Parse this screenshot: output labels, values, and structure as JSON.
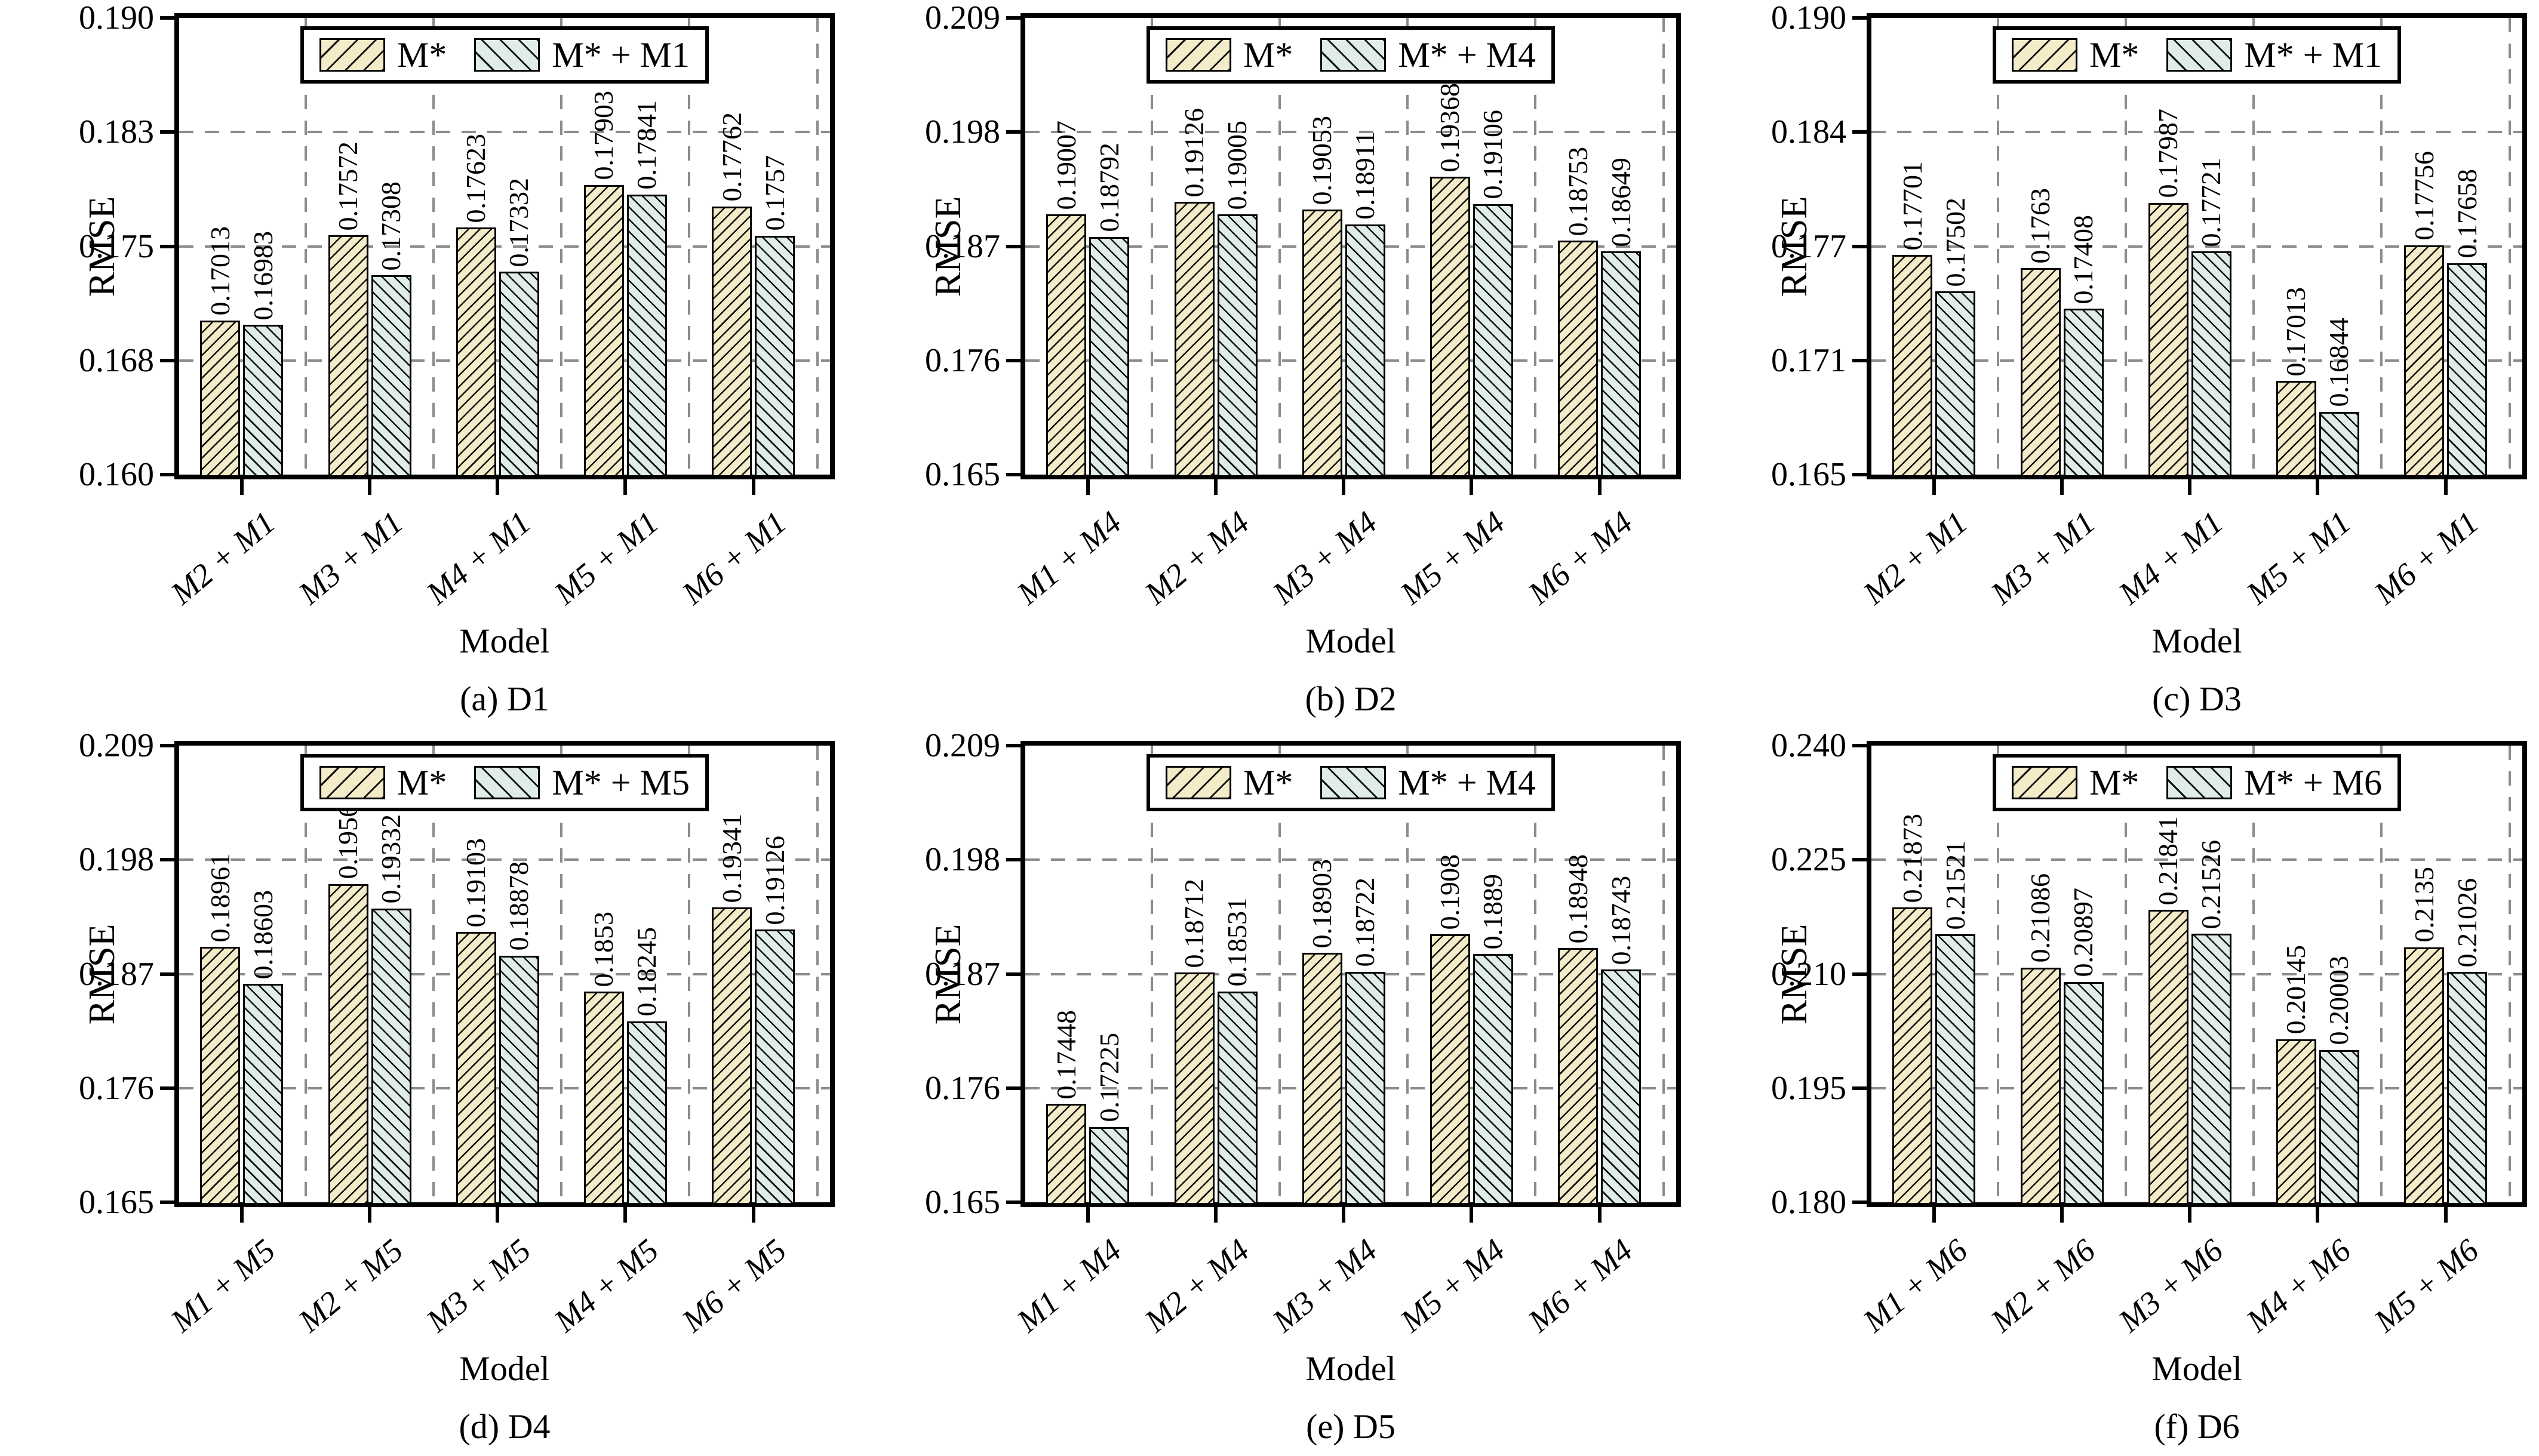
{
  "figure_background": "#ffffff",
  "colors": {
    "series1_fill": "#f4ebc9",
    "series2_fill": "#dfece9",
    "bar_edge": "#000000",
    "grid": "#8c8c8c",
    "axis": "#000000"
  },
  "chart_data": [
    {
      "type": "bar",
      "title": "(a) D1",
      "xlabel": "Model",
      "ylabel": "RMSE",
      "ylim": [
        0.16,
        0.19
      ],
      "ytick_labels": [
        "0.160",
        "0.168",
        "0.175",
        "0.183",
        "0.190"
      ],
      "grid": "dashed",
      "legend_position": "upper center",
      "categories": [
        "M2 + M1",
        "M3 + M1",
        "M4 + M1",
        "M5 + M1",
        "M6 + M1"
      ],
      "series": [
        {
          "name": "M*",
          "values": [
            0.17013,
            0.17572,
            0.17623,
            0.17903,
            0.17762
          ],
          "labels": [
            "0.17013",
            "0.17572",
            "0.17623",
            "0.17903",
            "0.17762"
          ]
        },
        {
          "name": "M* + M1",
          "values": [
            0.16983,
            0.17308,
            0.17332,
            0.17841,
            0.1757
          ],
          "labels": [
            "0.16983",
            "0.17308",
            "0.17332",
            "0.17841",
            "0.1757"
          ]
        }
      ]
    },
    {
      "type": "bar",
      "title": "(b) D2",
      "xlabel": "Model",
      "ylabel": "RMSE",
      "ylim": [
        0.165,
        0.209
      ],
      "ytick_labels": [
        "0.165",
        "0.176",
        "0.187",
        "0.198",
        "0.209"
      ],
      "grid": "dashed",
      "legend_position": "upper center",
      "categories": [
        "M1 + M4",
        "M2 + M4",
        "M3 + M4",
        "M5 + M4",
        "M6 + M4"
      ],
      "series": [
        {
          "name": "M*",
          "values": [
            0.19007,
            0.19126,
            0.19053,
            0.19368,
            0.18753
          ],
          "labels": [
            "0.19007",
            "0.19126",
            "0.19053",
            "0.19368",
            "0.18753"
          ]
        },
        {
          "name": "M* + M4",
          "values": [
            0.18792,
            0.19005,
            0.18911,
            0.19106,
            0.18649
          ],
          "labels": [
            "0.18792",
            "0.19005",
            "0.18911",
            "0.19106",
            "0.18649"
          ]
        }
      ]
    },
    {
      "type": "bar",
      "title": "(c) D3",
      "xlabel": "Model",
      "ylabel": "RMSE",
      "ylim": [
        0.165,
        0.19
      ],
      "ytick_labels": [
        "0.165",
        "0.171",
        "0.177",
        "0.184",
        "0.190"
      ],
      "grid": "dashed",
      "legend_position": "upper center",
      "categories": [
        "M2 + M1",
        "M3 + M1",
        "M4 + M1",
        "M5 + M1",
        "M6 + M1"
      ],
      "series": [
        {
          "name": "M*",
          "values": [
            0.17701,
            0.1763,
            0.17987,
            0.17013,
            0.17756
          ],
          "labels": [
            "0.17701",
            "0.1763",
            "0.17987",
            "0.17013",
            "0.17756"
          ]
        },
        {
          "name": "M* + M1",
          "values": [
            0.17502,
            0.17408,
            0.17721,
            0.16844,
            0.17658
          ],
          "labels": [
            "0.17502",
            "0.17408",
            "0.17721",
            "0.16844",
            "0.17658"
          ]
        }
      ]
    },
    {
      "type": "bar",
      "title": "(d) D4",
      "xlabel": "Model",
      "ylabel": "RMSE",
      "ylim": [
        0.165,
        0.209
      ],
      "ytick_labels": [
        "0.165",
        "0.176",
        "0.187",
        "0.198",
        "0.209"
      ],
      "grid": "dashed",
      "legend_position": "upper center",
      "categories": [
        "M1 + M5",
        "M2 + M5",
        "M3 + M5",
        "M4 + M5",
        "M6 + M5"
      ],
      "series": [
        {
          "name": "M*",
          "values": [
            0.18961,
            0.19568,
            0.19103,
            0.1853,
            0.19341
          ],
          "labels": [
            "0.18961",
            "0.19568",
            "0.19103",
            "0.1853",
            "0.19341"
          ]
        },
        {
          "name": "M* + M5",
          "values": [
            0.18603,
            0.19332,
            0.18878,
            0.18245,
            0.19126
          ],
          "labels": [
            "0.18603",
            "0.19332",
            "0.18878",
            "0.18245",
            "0.19126"
          ]
        }
      ]
    },
    {
      "type": "bar",
      "title": "(e) D5",
      "xlabel": "Model",
      "ylabel": "RMSE",
      "ylim": [
        0.165,
        0.209
      ],
      "ytick_labels": [
        "0.165",
        "0.176",
        "0.187",
        "0.198",
        "0.209"
      ],
      "grid": "dashed",
      "legend_position": "upper center",
      "categories": [
        "M1 + M4",
        "M2 + M4",
        "M3 + M4",
        "M5 + M4",
        "M6 + M4"
      ],
      "series": [
        {
          "name": "M*",
          "values": [
            0.17448,
            0.18712,
            0.18903,
            0.1908,
            0.18948
          ],
          "labels": [
            "0.17448",
            "0.18712",
            "0.18903",
            "0.1908",
            "0.18948"
          ]
        },
        {
          "name": "M* + M4",
          "values": [
            0.17225,
            0.18531,
            0.18722,
            0.1889,
            0.18743
          ],
          "labels": [
            "0.17225",
            "0.18531",
            "0.18722",
            "0.1889",
            "0.18743"
          ]
        }
      ]
    },
    {
      "type": "bar",
      "title": "(f) D6",
      "xlabel": "Model",
      "ylabel": "RMSE",
      "ylim": [
        0.18,
        0.24
      ],
      "ytick_labels": [
        "0.180",
        "0.195",
        "0.210",
        "0.225",
        "0.240"
      ],
      "grid": "dashed",
      "legend_position": "upper center",
      "categories": [
        "M1 + M6",
        "M2 + M6",
        "M3 + M6",
        "M4 + M6",
        "M5 + M6"
      ],
      "series": [
        {
          "name": "M*",
          "values": [
            0.21873,
            0.21086,
            0.21841,
            0.20145,
            0.2135
          ],
          "labels": [
            "0.21873",
            "0.21086",
            "0.21841",
            "0.20145",
            "0.2135"
          ]
        },
        {
          "name": "M* + M6",
          "values": [
            0.21521,
            0.20897,
            0.21526,
            0.20003,
            0.21026
          ],
          "labels": [
            "0.21521",
            "0.20897",
            "0.21526",
            "0.20003",
            "0.21026"
          ]
        }
      ]
    }
  ]
}
